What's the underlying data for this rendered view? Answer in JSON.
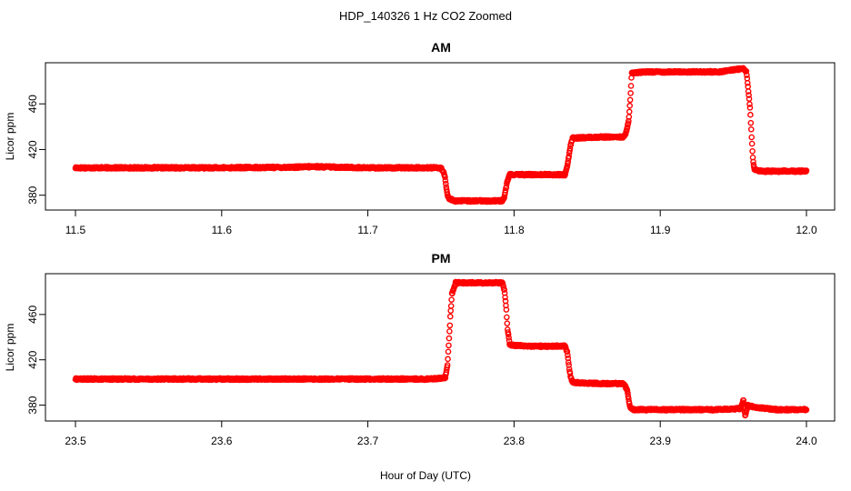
{
  "figure": {
    "title": "HDP_140326  1 Hz CO2 Zoomed",
    "xlabel": "Hour of Day (UTC)"
  },
  "chart_data": [
    {
      "type": "scatter",
      "title": "AM",
      "xlabel": "Hour of Day (UTC)",
      "ylabel": "Licor ppm",
      "xlim": [
        11.5,
        12.0
      ],
      "ylim": [
        367,
        496
      ],
      "x_ticks": [
        "11.5",
        "11.6",
        "11.7",
        "11.8",
        "11.9",
        "12.0"
      ],
      "y_ticks": [
        "380",
        "420",
        "460"
      ],
      "marker_color": "#ff0000",
      "series": [
        {
          "x": [
            11.5,
            11.55,
            11.6,
            11.65,
            11.663,
            11.7,
            11.75,
            11.7525,
            11.7535,
            11.7545,
            11.7555,
            11.76,
            11.77,
            11.78,
            11.792,
            11.7935,
            11.7945,
            11.7955,
            11.797,
            11.81,
            11.825,
            11.835,
            11.8365,
            11.8375,
            11.8385,
            11.84,
            11.86,
            11.875,
            11.877,
            11.8785,
            11.8795,
            11.8805,
            11.89,
            11.92,
            11.94,
            11.957,
            11.959,
            11.9605,
            11.9615,
            11.9625,
            11.9635,
            11.9645,
            11.97,
            11.985,
            12.0
          ],
          "y": [
            404,
            404,
            404,
            404.5,
            405,
            404,
            404,
            398,
            388,
            380,
            377,
            375,
            375,
            375,
            375,
            379,
            386,
            393,
            398,
            398,
            398,
            398,
            406,
            414,
            423,
            430,
            431,
            431,
            436,
            446,
            465,
            487,
            488,
            488,
            488,
            491,
            488,
            468,
            455,
            430,
            410,
            402,
            401,
            401,
            401
          ]
        }
      ]
    },
    {
      "type": "scatter",
      "title": "PM",
      "xlabel": "Hour of Day (UTC)",
      "ylabel": "Licor ppm",
      "xlim": [
        23.5,
        24.0
      ],
      "ylim": [
        366,
        496
      ],
      "x_ticks": [
        "23.5",
        "23.6",
        "23.7",
        "23.8",
        "23.9",
        "24.0"
      ],
      "y_ticks": [
        "380",
        "420",
        "460"
      ],
      "marker_color": "#ff0000",
      "series": [
        {
          "x": [
            23.5,
            23.55,
            23.6,
            23.65,
            23.7,
            23.74,
            23.753,
            23.7545,
            23.7555,
            23.7565,
            23.7575,
            23.76,
            23.78,
            23.792,
            23.7935,
            23.7945,
            23.7955,
            23.797,
            23.81,
            23.835,
            23.8365,
            23.8375,
            23.8385,
            23.84,
            23.86,
            23.875,
            23.8775,
            23.8785,
            23.8795,
            23.881,
            23.9,
            23.92,
            23.94,
            23.955,
            23.957,
            23.958,
            23.96,
            23.965,
            23.98,
            24.0
          ],
          "y": [
            403,
            403,
            403,
            403,
            403,
            403,
            404,
            416,
            437,
            460,
            478,
            488,
            488,
            488,
            481,
            468,
            448,
            433,
            432,
            432,
            426,
            415,
            406,
            400,
            399,
            399,
            393,
            384,
            378,
            376,
            376,
            376,
            376,
            377,
            385,
            370,
            380,
            378,
            376,
            376
          ]
        }
      ]
    }
  ]
}
